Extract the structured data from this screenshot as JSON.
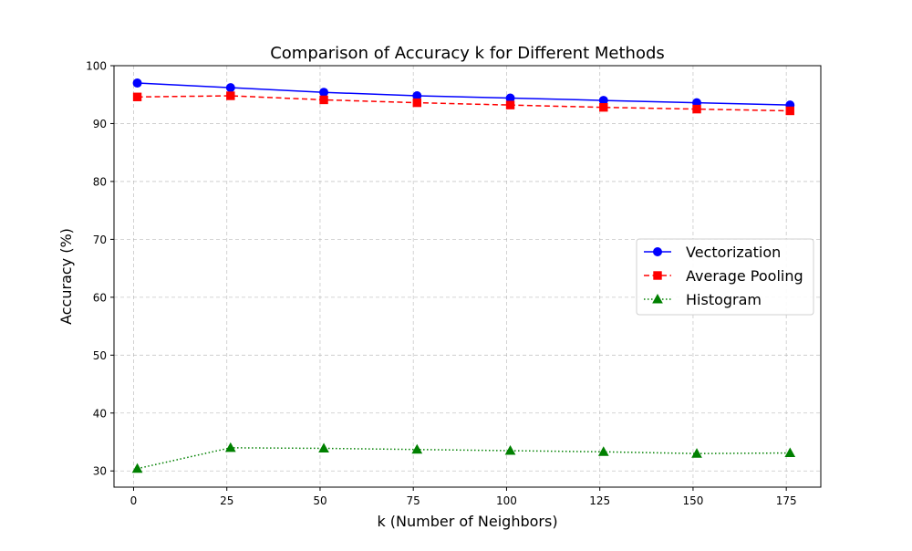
{
  "chart_data": {
    "type": "line",
    "title": "Comparison of Accuracy k for Different Methods",
    "xlabel": "k (Number of Neighbors)",
    "ylabel": "Accuracy (%)",
    "xlim": [
      -5.25,
      184.25
    ],
    "ylim": [
      27.2,
      100
    ],
    "x_ticks": [
      0,
      25,
      50,
      75,
      100,
      125,
      150,
      175
    ],
    "y_ticks": [
      30,
      40,
      50,
      60,
      70,
      80,
      90,
      100
    ],
    "grid": true,
    "legend_position": "center-right",
    "x": [
      1,
      26,
      51,
      76,
      101,
      126,
      151,
      176
    ],
    "series": [
      {
        "name": "Vectorization",
        "values": [
          97.0,
          96.2,
          95.4,
          94.8,
          94.4,
          94.0,
          93.6,
          93.2
        ],
        "color": "#0000ff",
        "line_style": "solid",
        "marker": "circle"
      },
      {
        "name": "Average Pooling",
        "values": [
          94.6,
          94.8,
          94.1,
          93.6,
          93.2,
          92.8,
          92.5,
          92.2
        ],
        "color": "#ff0000",
        "line_style": "dashed",
        "marker": "square"
      },
      {
        "name": "Histogram",
        "values": [
          30.4,
          34.0,
          33.9,
          33.7,
          33.5,
          33.3,
          33.0,
          33.1
        ],
        "color": "#008000",
        "line_style": "dotted",
        "marker": "triangle"
      }
    ]
  }
}
